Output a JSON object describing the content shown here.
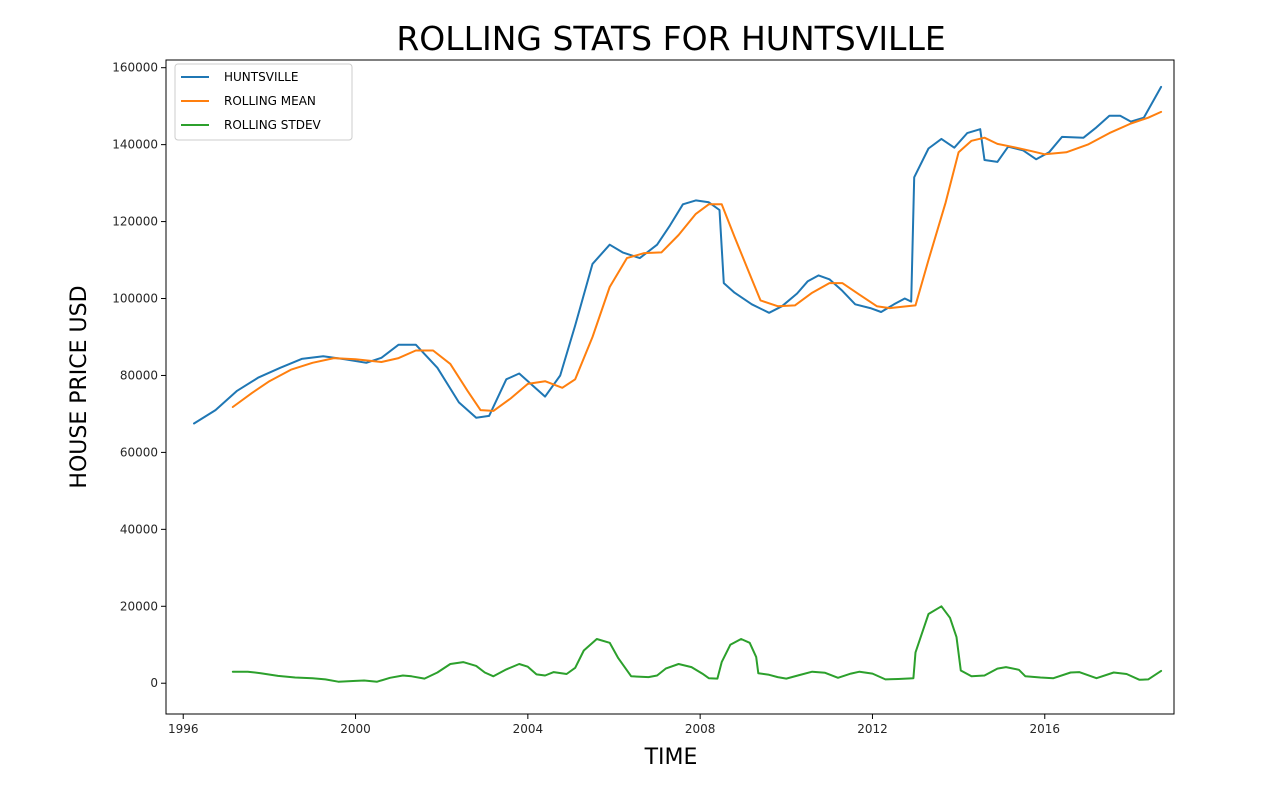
{
  "chart_data": {
    "type": "line",
    "title": "ROLLING STATS FOR HUNTSVILLE",
    "xlabel": "TIME",
    "ylabel": "HOUSE PRICE USD",
    "xlim": [
      1995.6,
      2019.0
    ],
    "ylim": [
      -8000,
      162000
    ],
    "x_ticks": [
      1996,
      2000,
      2004,
      2008,
      2012,
      2016
    ],
    "y_ticks": [
      0,
      20000,
      40000,
      60000,
      80000,
      100000,
      120000,
      140000,
      160000
    ],
    "y_tick_labels": [
      "0",
      "20000",
      "40000",
      "60000",
      "80000",
      "100000",
      "120000",
      "140000",
      "160000"
    ],
    "grid": false,
    "legend_position": "top-left",
    "series": [
      {
        "name": "HUNTSVILLE",
        "color": "#1f77b4",
        "points": [
          [
            1996.25,
            67500
          ],
          [
            1996.75,
            71000
          ],
          [
            1997.25,
            76000
          ],
          [
            1997.75,
            79500
          ],
          [
            1998.25,
            82000
          ],
          [
            1998.75,
            84300
          ],
          [
            1999.25,
            85000
          ],
          [
            1999.75,
            84200
          ],
          [
            2000.25,
            83300
          ],
          [
            2000.6,
            84600
          ],
          [
            2001.0,
            88000
          ],
          [
            2001.4,
            88000
          ],
          [
            2001.9,
            82000
          ],
          [
            2002.4,
            73000
          ],
          [
            2002.8,
            69000
          ],
          [
            2003.1,
            69500
          ],
          [
            2003.5,
            79000
          ],
          [
            2003.8,
            80500
          ],
          [
            2004.1,
            77500
          ],
          [
            2004.4,
            74500
          ],
          [
            2004.75,
            80000
          ],
          [
            2005.1,
            93000
          ],
          [
            2005.5,
            109000
          ],
          [
            2005.9,
            114000
          ],
          [
            2006.2,
            112000
          ],
          [
            2006.6,
            110500
          ],
          [
            2007.0,
            114000
          ],
          [
            2007.3,
            119000
          ],
          [
            2007.6,
            124500
          ],
          [
            2007.9,
            125500
          ],
          [
            2008.2,
            125000
          ],
          [
            2008.45,
            123000
          ],
          [
            2008.55,
            104000
          ],
          [
            2008.8,
            101500
          ],
          [
            2009.2,
            98500
          ],
          [
            2009.6,
            96300
          ],
          [
            2009.9,
            98000
          ],
          [
            2010.25,
            101300
          ],
          [
            2010.5,
            104500
          ],
          [
            2010.75,
            106000
          ],
          [
            2011.0,
            105000
          ],
          [
            2011.3,
            102000
          ],
          [
            2011.6,
            98500
          ],
          [
            2011.95,
            97500
          ],
          [
            2012.2,
            96500
          ],
          [
            2012.5,
            98500
          ],
          [
            2012.75,
            100000
          ],
          [
            2012.9,
            99200
          ],
          [
            2012.97,
            131500
          ],
          [
            2013.3,
            139000
          ],
          [
            2013.6,
            141500
          ],
          [
            2013.9,
            139200
          ],
          [
            2014.2,
            143000
          ],
          [
            2014.5,
            144000
          ],
          [
            2014.6,
            136000
          ],
          [
            2014.9,
            135500
          ],
          [
            2015.15,
            139500
          ],
          [
            2015.5,
            138500
          ],
          [
            2015.8,
            136200
          ],
          [
            2016.1,
            138000
          ],
          [
            2016.4,
            142000
          ],
          [
            2016.9,
            141800
          ],
          [
            2017.2,
            144500
          ],
          [
            2017.5,
            147500
          ],
          [
            2017.75,
            147500
          ],
          [
            2018.0,
            146000
          ],
          [
            2018.3,
            147000
          ],
          [
            2018.55,
            152000
          ],
          [
            2018.7,
            155000
          ]
        ]
      },
      {
        "name": "ROLLING MEAN",
        "color": "#ff7f0e",
        "points": [
          [
            1997.15,
            71800
          ],
          [
            1997.6,
            75500
          ],
          [
            1998.0,
            78500
          ],
          [
            1998.5,
            81500
          ],
          [
            1999.0,
            83300
          ],
          [
            1999.5,
            84500
          ],
          [
            2000.0,
            84200
          ],
          [
            2000.6,
            83500
          ],
          [
            2001.0,
            84500
          ],
          [
            2001.4,
            86500
          ],
          [
            2001.8,
            86500
          ],
          [
            2002.2,
            83000
          ],
          [
            2002.6,
            76000
          ],
          [
            2002.9,
            71000
          ],
          [
            2003.2,
            70800
          ],
          [
            2003.6,
            74000
          ],
          [
            2004.0,
            77800
          ],
          [
            2004.4,
            78500
          ],
          [
            2004.8,
            76800
          ],
          [
            2005.1,
            79000
          ],
          [
            2005.5,
            90000
          ],
          [
            2005.9,
            103000
          ],
          [
            2006.3,
            110500
          ],
          [
            2006.7,
            111800
          ],
          [
            2007.1,
            112000
          ],
          [
            2007.5,
            116500
          ],
          [
            2007.9,
            122000
          ],
          [
            2008.2,
            124500
          ],
          [
            2008.5,
            124500
          ],
          [
            2008.8,
            116000
          ],
          [
            2009.2,
            105000
          ],
          [
            2009.4,
            99500
          ],
          [
            2009.8,
            98000
          ],
          [
            2010.2,
            98200
          ],
          [
            2010.6,
            101500
          ],
          [
            2011.0,
            104000
          ],
          [
            2011.3,
            104000
          ],
          [
            2011.7,
            101000
          ],
          [
            2012.1,
            98000
          ],
          [
            2012.4,
            97500
          ],
          [
            2012.8,
            98000
          ],
          [
            2013.0,
            98200
          ],
          [
            2013.3,
            110000
          ],
          [
            2013.7,
            125000
          ],
          [
            2014.0,
            138000
          ],
          [
            2014.3,
            141000
          ],
          [
            2014.6,
            141800
          ],
          [
            2014.9,
            140200
          ],
          [
            2015.3,
            139300
          ],
          [
            2015.7,
            138300
          ],
          [
            2016.0,
            137500
          ],
          [
            2016.5,
            138000
          ],
          [
            2017.0,
            140000
          ],
          [
            2017.5,
            143000
          ],
          [
            2018.0,
            145500
          ],
          [
            2018.4,
            147000
          ],
          [
            2018.7,
            148500
          ]
        ]
      },
      {
        "name": "ROLLING STDEV",
        "color": "#2ca02c",
        "points": [
          [
            1997.15,
            3000
          ],
          [
            1997.5,
            3000
          ],
          [
            1997.8,
            2600
          ],
          [
            1998.2,
            1900
          ],
          [
            1998.6,
            1500
          ],
          [
            1999.0,
            1300
          ],
          [
            1999.3,
            1000
          ],
          [
            1999.6,
            400
          ],
          [
            2000.0,
            600
          ],
          [
            2000.2,
            700
          ],
          [
            2000.5,
            400
          ],
          [
            2000.8,
            1400
          ],
          [
            2001.1,
            2000
          ],
          [
            2001.3,
            1800
          ],
          [
            2001.6,
            1200
          ],
          [
            2001.9,
            2800
          ],
          [
            2002.2,
            5000
          ],
          [
            2002.5,
            5500
          ],
          [
            2002.8,
            4500
          ],
          [
            2003.0,
            2800
          ],
          [
            2003.2,
            1800
          ],
          [
            2003.5,
            3600
          ],
          [
            2003.8,
            5000
          ],
          [
            2004.0,
            4300
          ],
          [
            2004.2,
            2300
          ],
          [
            2004.4,
            2000
          ],
          [
            2004.6,
            2900
          ],
          [
            2004.9,
            2400
          ],
          [
            2005.1,
            4000
          ],
          [
            2005.3,
            8500
          ],
          [
            2005.6,
            11500
          ],
          [
            2005.9,
            10500
          ],
          [
            2006.1,
            6500
          ],
          [
            2006.4,
            1800
          ],
          [
            2006.8,
            1600
          ],
          [
            2007.0,
            2000
          ],
          [
            2007.2,
            3800
          ],
          [
            2007.5,
            5000
          ],
          [
            2007.8,
            4200
          ],
          [
            2008.05,
            2500
          ],
          [
            2008.2,
            1300
          ],
          [
            2008.4,
            1200
          ],
          [
            2008.5,
            5500
          ],
          [
            2008.7,
            10000
          ],
          [
            2008.95,
            11500
          ],
          [
            2009.15,
            10500
          ],
          [
            2009.3,
            6800
          ],
          [
            2009.35,
            2600
          ],
          [
            2009.6,
            2200
          ],
          [
            2009.8,
            1600
          ],
          [
            2010.0,
            1200
          ],
          [
            2010.3,
            2100
          ],
          [
            2010.6,
            3000
          ],
          [
            2010.9,
            2700
          ],
          [
            2011.2,
            1400
          ],
          [
            2011.5,
            2500
          ],
          [
            2011.7,
            3000
          ],
          [
            2012.0,
            2500
          ],
          [
            2012.3,
            1000
          ],
          [
            2012.6,
            1100
          ],
          [
            2012.95,
            1300
          ],
          [
            2013.0,
            8000
          ],
          [
            2013.3,
            18000
          ],
          [
            2013.6,
            20000
          ],
          [
            2013.8,
            17000
          ],
          [
            2013.95,
            12000
          ],
          [
            2014.05,
            3300
          ],
          [
            2014.3,
            1800
          ],
          [
            2014.6,
            2000
          ],
          [
            2014.9,
            3800
          ],
          [
            2015.1,
            4200
          ],
          [
            2015.4,
            3500
          ],
          [
            2015.55,
            1800
          ],
          [
            2015.9,
            1500
          ],
          [
            2016.2,
            1300
          ],
          [
            2016.6,
            2800
          ],
          [
            2016.8,
            2900
          ],
          [
            2017.2,
            1300
          ],
          [
            2017.6,
            2800
          ],
          [
            2017.9,
            2400
          ],
          [
            2018.2,
            900
          ],
          [
            2018.4,
            1000
          ],
          [
            2018.7,
            3200
          ]
        ]
      }
    ]
  }
}
